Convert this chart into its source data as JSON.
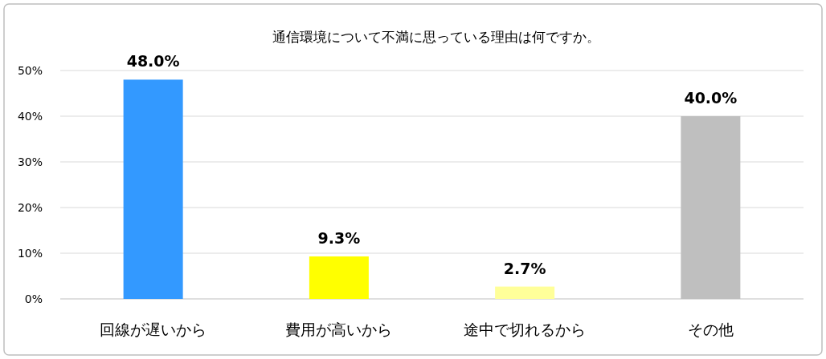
{
  "chart_data": {
    "type": "bar",
    "title": "通信環境について不満に思っている理由は何ですか。",
    "categories": [
      "回線が遅いから",
      "費用が高いから",
      "途中で切れるから",
      "その他"
    ],
    "values": [
      48.0,
      9.3,
      2.7,
      40.0
    ],
    "colors": [
      "#3399ff",
      "#ffff00",
      "#ffff99",
      "#bfbfbf"
    ],
    "value_labels": [
      "48.0%",
      "9.3%",
      "2.7%",
      "40.0%"
    ],
    "ylim": [
      0,
      50
    ],
    "yticks": [
      {
        "value": 0,
        "label": "0%"
      },
      {
        "value": 10,
        "label": "10%"
      },
      {
        "value": 20,
        "label": "20%"
      },
      {
        "value": 30,
        "label": "30%"
      },
      {
        "value": 40,
        "label": "40%"
      },
      {
        "value": 50,
        "label": "50%"
      }
    ],
    "grid": "y"
  }
}
